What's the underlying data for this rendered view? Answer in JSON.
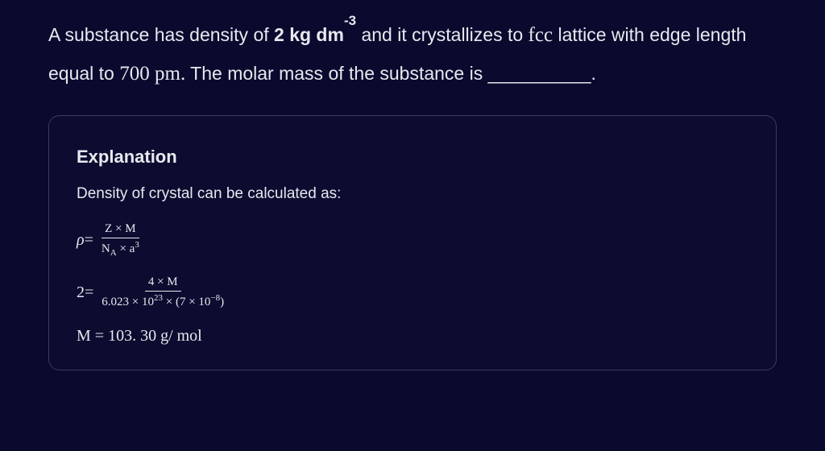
{
  "question": {
    "part1": "A substance has density of ",
    "density_val": "2 kg dm",
    "density_exp": "-3",
    "part2": " and it crystallizes to ",
    "lattice": "fcc",
    "part3": " lattice with edge length equal to ",
    "edge_val": "700 pm.",
    "part4": " The molar mass of the substance is ",
    "blank": "__________",
    "end": "."
  },
  "explanation": {
    "title": "Explanation",
    "intro": "Density of crystal can be calculated as:",
    "formula1": {
      "lhs": "ρ",
      "eq": " = ",
      "num": "Z × M",
      "den_na": "N",
      "den_na_sub": "A",
      "den_rest": " × a",
      "den_exp": "3"
    },
    "formula2": {
      "lhs": "2",
      "eq": " = ",
      "num": "4 × M",
      "den1": "6.023 × 10",
      "den1_exp": "23",
      "den2": " × (7 × 10",
      "den2_exp": "−8",
      "den3": ")"
    },
    "result": "M = 103. 30 g/ mol"
  },
  "colors": {
    "background": "#0a0a2e",
    "text": "#e8e8f0",
    "border": "#3a3a5e"
  }
}
